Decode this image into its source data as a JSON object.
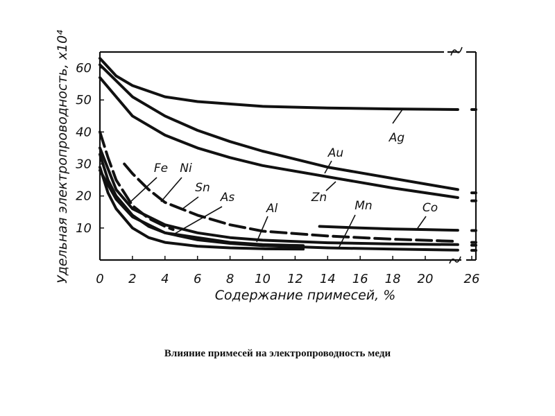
{
  "caption": "Влияние примесей на электропроводность меди",
  "chart_data": {
    "type": "line",
    "title": "",
    "xlabel": "Содержание примесей, %",
    "ylabel": "Удельная электропроводность, x10⁴",
    "xlim": [
      0,
      26
    ],
    "ylim": [
      0,
      65
    ],
    "x_break": [
      22,
      26
    ],
    "xticks": [
      "0",
      "2",
      "4",
      "6",
      "8",
      "10",
      "12",
      "14",
      "16",
      "18",
      "20",
      "26"
    ],
    "yticks": [
      "10",
      "20",
      "30",
      "40",
      "50",
      "60"
    ],
    "series": [
      {
        "name": "Ag",
        "x": [
          0,
          1,
          2,
          4,
          6,
          10,
          14,
          18,
          22,
          26
        ],
        "y": [
          63,
          57.5,
          54.5,
          51,
          49.5,
          48,
          47.5,
          47.2,
          47,
          47
        ]
      },
      {
        "name": "Au",
        "x": [
          0,
          2,
          4,
          6,
          8,
          10,
          14,
          18,
          22,
          26
        ],
        "y": [
          61,
          51,
          45,
          40.5,
          37,
          34,
          29,
          25.5,
          22,
          21
        ]
      },
      {
        "name": "Zn",
        "x": [
          0,
          2,
          4,
          6,
          8,
          10,
          14,
          18,
          22,
          26
        ],
        "y": [
          57,
          45,
          39,
          35,
          32,
          29.5,
          26,
          22.5,
          19.5,
          18.5
        ]
      },
      {
        "name": "Fe",
        "x": [
          0,
          0.5,
          1,
          2,
          3,
          4,
          6,
          8,
          10,
          12.5
        ],
        "y": [
          29,
          21,
          16,
          10,
          7,
          5.5,
          4.3,
          3.8,
          3.5,
          3.4
        ]
      },
      {
        "name": "Ni",
        "x": [
          0,
          0.5,
          1,
          2,
          3,
          4,
          6,
          8,
          10,
          12.5
        ],
        "y": [
          33,
          25,
          20,
          14,
          10.5,
          8.5,
          7,
          5.5,
          4.8,
          4.5
        ]
      },
      {
        "name": "Sn",
        "x": [
          0,
          0.5,
          1,
          2,
          3,
          4,
          4.5
        ],
        "y": [
          40,
          32,
          25,
          17,
          13,
          10.5,
          9.5
        ]
      },
      {
        "name": "As",
        "x": [
          1.5,
          2,
          3,
          4,
          6,
          8,
          10,
          14,
          18,
          22,
          26
        ],
        "y": [
          30,
          27,
          22,
          18,
          14,
          11,
          9,
          7.5,
          6.5,
          5.8,
          5.5
        ]
      },
      {
        "name": "Al",
        "x": [
          0,
          1,
          2,
          4,
          6,
          8,
          10,
          14,
          18,
          22,
          26
        ],
        "y": [
          35,
          22,
          16,
          11,
          8.5,
          7,
          6.2,
          5.4,
          5,
          4.8,
          4.6
        ]
      },
      {
        "name": "Mn",
        "x": [
          0,
          1,
          2,
          4,
          6,
          8,
          10,
          14,
          18,
          22,
          26
        ],
        "y": [
          28,
          19,
          13.5,
          8.5,
          6.3,
          5.2,
          4.5,
          3.8,
          3.4,
          3.1,
          3
        ]
      },
      {
        "name": "Co",
        "x": [
          13.5,
          16,
          18,
          20,
          22,
          26
        ],
        "y": [
          10.5,
          10,
          9.7,
          9.5,
          9.3,
          9.2
        ]
      }
    ],
    "labels": [
      "Fe",
      "Ni",
      "Sn",
      "As",
      "Al",
      "Zn",
      "Au",
      "Mn",
      "Ag",
      "Co"
    ],
    "grid": false,
    "legend": "inline labels"
  }
}
